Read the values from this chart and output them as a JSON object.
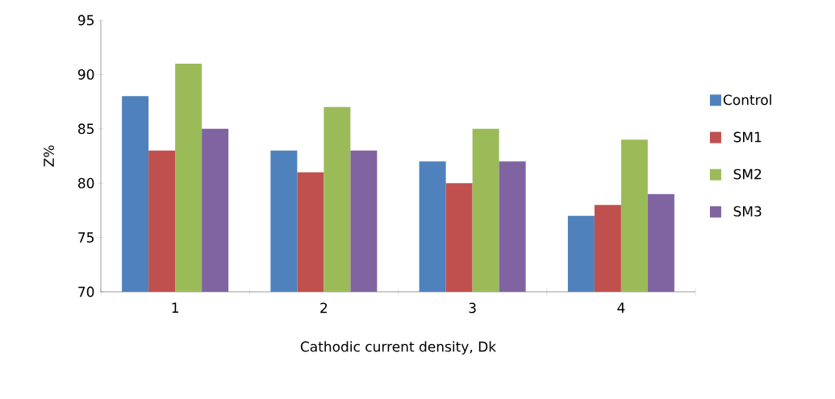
{
  "chart_data": {
    "type": "bar",
    "xlabel": "Cathodic current density, Dk",
    "ylabel": "Z%",
    "categories": [
      "1",
      "2",
      "3",
      "4"
    ],
    "series": [
      {
        "name": "Control",
        "color": "#4f81bd",
        "values": [
          88,
          83,
          82,
          77
        ]
      },
      {
        "name": "SM1",
        "color": "#c0504d",
        "values": [
          83,
          81,
          80,
          78
        ]
      },
      {
        "name": "SM2",
        "color": "#9bbb59",
        "values": [
          91,
          87,
          85,
          84
        ]
      },
      {
        "name": "SM3",
        "color": "#8064a2",
        "values": [
          85,
          83,
          82,
          79
        ]
      }
    ],
    "ylim": [
      70,
      95
    ],
    "yticks": [
      70,
      75,
      80,
      85,
      90,
      95
    ],
    "legend": "right"
  }
}
